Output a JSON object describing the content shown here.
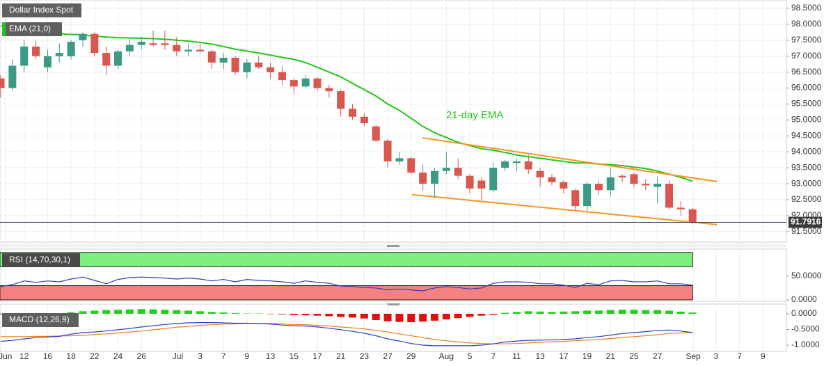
{
  "chart_data": [
    {
      "type": "candlestick",
      "title": "Dollar Index Spot",
      "open": [
        96.3,
        96.0,
        96.7,
        97.3,
        96.65,
        97.0,
        97.0,
        97.5,
        97.7,
        97.1,
        96.7,
        97.15,
        97.35,
        97.4,
        97.4,
        97.35,
        97.15,
        97.2,
        97.15,
        96.8,
        96.95,
        96.5,
        96.8,
        96.65,
        96.5,
        96.25,
        96.05,
        96.3,
        96.0,
        95.9,
        95.35,
        95.1,
        94.8,
        94.35,
        93.7,
        93.8,
        93.35,
        93.0,
        93.4,
        93.5,
        93.25,
        93.1,
        92.8,
        93.5,
        93.65,
        93.7,
        93.4,
        93.2,
        93.05,
        92.8,
        92.3,
        93.0,
        92.8,
        93.25,
        93.3,
        93.0,
        92.9,
        93.0,
        92.25,
        92.2
      ],
      "high": [
        96.4,
        96.9,
        97.5,
        97.5,
        97.2,
        97.4,
        97.5,
        97.75,
        97.75,
        97.3,
        97.2,
        97.5,
        97.6,
        97.8,
        97.8,
        97.6,
        97.4,
        97.4,
        97.2,
        97.1,
        97.0,
        96.9,
        97.0,
        96.8,
        96.7,
        96.3,
        96.4,
        96.35,
        96.1,
        95.95,
        95.5,
        95.2,
        94.85,
        94.4,
        94.0,
        93.85,
        93.6,
        93.5,
        94.0,
        93.8,
        93.3,
        93.2,
        93.65,
        93.75,
        93.8,
        93.9,
        93.5,
        93.3,
        93.1,
        92.85,
        93.05,
        93.1,
        93.5,
        93.3,
        93.35,
        93.15,
        93.2,
        93.1,
        92.45,
        92.25
      ],
      "low": [
        95.7,
        95.9,
        96.5,
        96.9,
        96.5,
        96.8,
        96.9,
        97.3,
        97.0,
        96.4,
        96.6,
        97.0,
        97.2,
        97.3,
        97.2,
        97.0,
        97.0,
        97.1,
        96.6,
        96.6,
        96.4,
        96.3,
        96.6,
        96.3,
        96.1,
        95.8,
        96.0,
        95.9,
        95.7,
        95.1,
        95.0,
        94.8,
        94.3,
        93.5,
        93.6,
        93.3,
        92.8,
        92.55,
        93.3,
        93.15,
        92.7,
        92.5,
        92.75,
        93.4,
        93.4,
        93.3,
        92.9,
        92.95,
        92.7,
        92.15,
        92.15,
        92.65,
        92.6,
        93.05,
        92.9,
        92.8,
        92.4,
        92.2,
        92.0,
        91.75
      ],
      "close": [
        96.0,
        96.7,
        97.3,
        97.0,
        97.0,
        97.1,
        97.45,
        97.7,
        97.1,
        96.7,
        97.15,
        97.35,
        97.45,
        97.35,
        97.35,
        97.15,
        97.2,
        97.15,
        96.8,
        96.95,
        96.5,
        96.8,
        96.65,
        96.5,
        96.25,
        96.05,
        96.3,
        96.0,
        95.9,
        95.35,
        95.1,
        94.9,
        94.35,
        93.7,
        93.8,
        93.35,
        93.0,
        93.4,
        93.5,
        93.25,
        92.85,
        92.85,
        93.5,
        93.7,
        93.7,
        93.45,
        93.2,
        93.05,
        92.85,
        92.3,
        93.0,
        92.8,
        93.2,
        93.2,
        93.0,
        92.95,
        93.0,
        92.25,
        92.2,
        91.79
      ],
      "colors": {
        "up": "#3b9a83",
        "down": "#d9574f"
      },
      "series": [
        {
          "name": "EMA (21,0)",
          "color": "#22c51c",
          "values": [
            97.95,
            97.9,
            97.85,
            97.8,
            97.75,
            97.7,
            97.68,
            97.66,
            97.63,
            97.6,
            97.58,
            97.57,
            97.56,
            97.55,
            97.53,
            97.5,
            97.47,
            97.43,
            97.38,
            97.3,
            97.22,
            97.16,
            97.1,
            97.03,
            96.96,
            96.9,
            96.8,
            96.65,
            96.5,
            96.35,
            96.15,
            95.95,
            95.75,
            95.5,
            95.3,
            95.05,
            94.8,
            94.6,
            94.45,
            94.3,
            94.2,
            94.1,
            94.05,
            93.98,
            93.9,
            93.85,
            93.8,
            93.75,
            93.7,
            93.65,
            93.65,
            93.62,
            93.6,
            93.57,
            93.52,
            93.48,
            93.4,
            93.3,
            93.2,
            93.08
          ]
        }
      ],
      "annotation": "21-day EMA",
      "trendlines": [
        {
          "x": [
            35.96,
            61.07
          ],
          "y": [
            94.44,
            93.07
          ],
          "color": "#f7941d"
        },
        {
          "x": [
            35.07,
            61.07
          ],
          "y": [
            92.66,
            91.72
          ],
          "color": "#f7941d"
        }
      ],
      "last_price": 91.7916,
      "ylim": [
        91.17,
        98.76
      ],
      "yticks": [
        {
          "value": 91.5,
          "label": "91.5000"
        },
        {
          "value": 92,
          "label": "92.0000"
        },
        {
          "value": 92.5,
          "label": "92.5000"
        },
        {
          "value": 93,
          "label": "93.0000"
        },
        {
          "value": 93.5,
          "label": "93.5000"
        },
        {
          "value": 94,
          "label": "94.0000"
        },
        {
          "value": 94.5,
          "label": "94.5000"
        },
        {
          "value": 95,
          "label": "95.0000"
        },
        {
          "value": 95.5,
          "label": "95.5000"
        },
        {
          "value": 96,
          "label": "96.0000"
        },
        {
          "value": 96.5,
          "label": "96.5000"
        },
        {
          "value": 97,
          "label": "97.0000"
        },
        {
          "value": 97.5,
          "label": "97.5000"
        },
        {
          "value": 98,
          "label": "98.0000"
        },
        {
          "value": 98.5,
          "label": "98.5000"
        }
      ],
      "xlim": [
        -0.06,
        67
      ],
      "xticks": [
        {
          "value": 0.4,
          "label": "Jun"
        },
        {
          "value": 2,
          "label": "12"
        },
        {
          "value": 4,
          "label": "16"
        },
        {
          "value": 6,
          "label": "18"
        },
        {
          "value": 8,
          "label": "22"
        },
        {
          "value": 10,
          "label": "24"
        },
        {
          "value": 12,
          "label": "26"
        },
        {
          "value": 15.1,
          "label": "Jul"
        },
        {
          "value": 17,
          "label": "3"
        },
        {
          "value": 19,
          "label": "7"
        },
        {
          "value": 21,
          "label": "9"
        },
        {
          "value": 23,
          "label": "13"
        },
        {
          "value": 25,
          "label": "15"
        },
        {
          "value": 27,
          "label": "17"
        },
        {
          "value": 29,
          "label": "21"
        },
        {
          "value": 31,
          "label": "23"
        },
        {
          "value": 33,
          "label": "27"
        },
        {
          "value": 35,
          "label": "29"
        },
        {
          "value": 38,
          "label": "Aug"
        },
        {
          "value": 40,
          "label": "5"
        },
        {
          "value": 42,
          "label": "7"
        },
        {
          "value": 44,
          "label": "11"
        },
        {
          "value": 46,
          "label": "13"
        },
        {
          "value": 48,
          "label": "17"
        },
        {
          "value": 50,
          "label": "19"
        },
        {
          "value": 52,
          "label": "21"
        },
        {
          "value": 54,
          "label": "25"
        },
        {
          "value": 56,
          "label": "27"
        },
        {
          "value": 59.05,
          "label": "Sep"
        },
        {
          "value": 61,
          "label": "3"
        },
        {
          "value": 63,
          "label": "7"
        },
        {
          "value": 65,
          "label": "9"
        }
      ],
      "grid": true
    },
    {
      "type": "line",
      "title": "RSI (14,70,30,1)",
      "color": "#2b3fc8",
      "values": [
        28,
        32,
        40,
        37,
        40,
        38,
        44,
        48,
        41,
        34,
        43,
        47,
        48,
        47,
        46,
        44,
        46,
        44,
        40,
        43,
        38,
        43,
        41,
        40,
        38,
        35,
        40,
        37,
        35,
        29,
        28,
        26,
        25,
        21,
        23,
        21,
        19,
        25,
        28,
        26,
        23,
        25,
        35,
        38,
        38,
        37,
        34,
        34,
        31,
        26,
        35,
        32,
        40,
        41,
        38,
        38,
        40,
        34,
        34,
        31
      ],
      "bands": [
        {
          "range": [
            70,
            100
          ],
          "color": "#7ff07f"
        },
        {
          "range": [
            0,
            30
          ],
          "color": "#f58080"
        }
      ],
      "ylim": [
        -3,
        107
      ],
      "yticks": [
        {
          "value": 50,
          "label": "50.0000"
        },
        {
          "value": 0,
          "label": "0.0000"
        }
      ]
    },
    {
      "type": "macd",
      "title": "MACD (12,26,9)",
      "macd": {
        "color": "#2b3fc8",
        "values": [
          -0.88,
          -0.85,
          -0.8,
          -0.76,
          -0.74,
          -0.72,
          -0.65,
          -0.6,
          -0.58,
          -0.55,
          -0.51,
          -0.47,
          -0.42,
          -0.38,
          -0.34,
          -0.31,
          -0.29,
          -0.28,
          -0.28,
          -0.29,
          -0.3,
          -0.3,
          -0.31,
          -0.33,
          -0.36,
          -0.38,
          -0.39,
          -0.42,
          -0.46,
          -0.51,
          -0.56,
          -0.62,
          -0.7,
          -0.8,
          -0.87,
          -0.95,
          -1.0,
          -1.02,
          -1.02,
          -1.02,
          -1.02,
          -1.0,
          -0.96,
          -0.9,
          -0.87,
          -0.85,
          -0.84,
          -0.83,
          -0.82,
          -0.8,
          -0.76,
          -0.73,
          -0.68,
          -0.63,
          -0.6,
          -0.57,
          -0.53,
          -0.52,
          -0.55,
          -0.6
        ]
      },
      "signal": {
        "color": "#f07d1a",
        "values": [
          -0.73,
          -0.73,
          -0.73,
          -0.72,
          -0.72,
          -0.71,
          -0.7,
          -0.69,
          -0.66,
          -0.64,
          -0.61,
          -0.58,
          -0.55,
          -0.51,
          -0.47,
          -0.43,
          -0.4,
          -0.37,
          -0.35,
          -0.33,
          -0.32,
          -0.31,
          -0.31,
          -0.31,
          -0.32,
          -0.34,
          -0.35,
          -0.37,
          -0.39,
          -0.42,
          -0.45,
          -0.48,
          -0.53,
          -0.58,
          -0.64,
          -0.7,
          -0.76,
          -0.82,
          -0.86,
          -0.9,
          -0.93,
          -0.95,
          -0.96,
          -0.96,
          -0.95,
          -0.93,
          -0.91,
          -0.89,
          -0.88,
          -0.86,
          -0.84,
          -0.82,
          -0.79,
          -0.76,
          -0.73,
          -0.7,
          -0.67,
          -0.63,
          -0.61,
          -0.6
        ]
      },
      "histogram": {
        "colors": {
          "up": "#22d01c",
          "down": "#e01010"
        },
        "values": [
          -0.02,
          -0.02,
          -0.01,
          0.01,
          0.01,
          0.02,
          0.05,
          0.08,
          0.1,
          0.12,
          0.13,
          0.14,
          0.15,
          0.14,
          0.13,
          0.12,
          0.1,
          0.08,
          0.06,
          0.04,
          0.02,
          0.01,
          0.01,
          -0.01,
          -0.02,
          -0.04,
          -0.05,
          -0.06,
          -0.08,
          -0.1,
          -0.12,
          -0.15,
          -0.2,
          -0.24,
          -0.26,
          -0.27,
          -0.25,
          -0.22,
          -0.18,
          -0.14,
          -0.1,
          -0.06,
          -0.03,
          0.03,
          0.06,
          0.08,
          0.07,
          0.06,
          0.07,
          0.08,
          0.1,
          0.1,
          0.12,
          0.13,
          0.13,
          0.12,
          0.12,
          0.1,
          0.07,
          0.04
        ]
      },
      "ylim": [
        -1.2,
        0.31
      ],
      "yticks": [
        {
          "value": 0,
          "label": "0.0000"
        },
        {
          "value": -0.5,
          "label": "-0.5000"
        },
        {
          "value": -1,
          "label": "-1.0000"
        }
      ]
    }
  ]
}
